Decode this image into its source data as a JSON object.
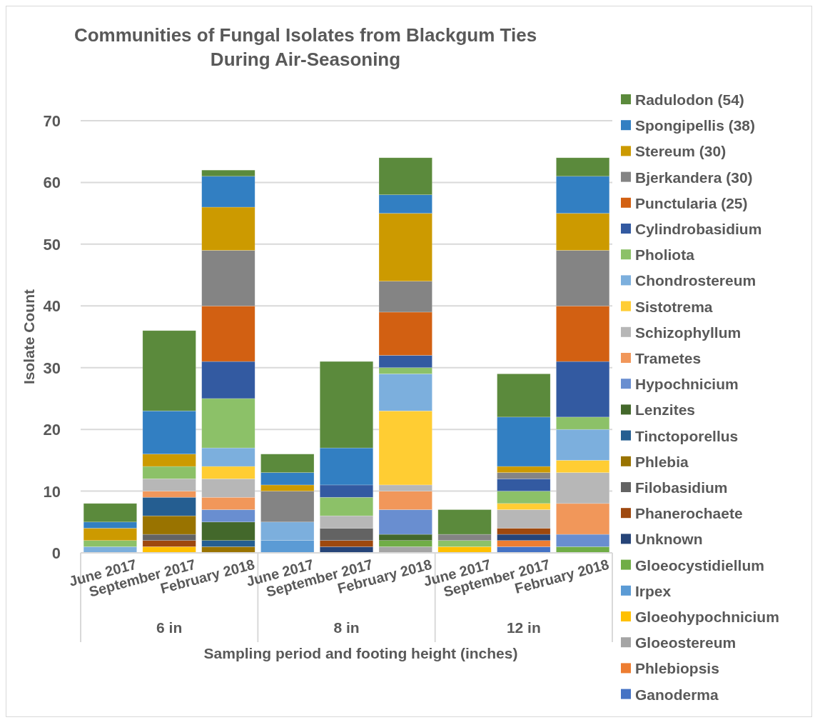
{
  "chart_data": {
    "type": "bar",
    "stacked": true,
    "title": "Communities of Fungal Isolates from Blackgum Ties During Air-Seasoning",
    "xlabel": "Sampling period and footing height (inches)",
    "ylabel": "Isolate Count",
    "categories": [
      "June 2017",
      "September 2017",
      "February 2018",
      "June 2017",
      "September 2017",
      "February 2018",
      "June 2017",
      "September 2017",
      "February 2018"
    ],
    "annotations": [
      "6 in",
      "8 in",
      "12 in"
    ],
    "ylim": [
      0,
      70
    ],
    "yticks": [
      0,
      10,
      20,
      30,
      40,
      50,
      60,
      70
    ],
    "grid": "y",
    "legend": "right",
    "series": [
      {
        "name": "Ganoderma",
        "color": "#4472c4",
        "values": [
          null,
          null,
          null,
          null,
          null,
          null,
          null,
          1,
          null
        ]
      },
      {
        "name": "Phlebiopsis",
        "color": "#ed7d31",
        "values": [
          null,
          null,
          null,
          null,
          null,
          null,
          null,
          1,
          null
        ]
      },
      {
        "name": "Gloeostereum",
        "color": "#a5a5a5",
        "values": [
          null,
          null,
          null,
          null,
          null,
          1,
          null,
          null,
          null
        ]
      },
      {
        "name": "Gloeohypochnicium",
        "color": "#ffc000",
        "values": [
          null,
          1,
          null,
          null,
          null,
          null,
          1,
          null,
          null
        ]
      },
      {
        "name": "Irpex",
        "color": "#5b9bd5",
        "values": [
          null,
          null,
          null,
          2,
          null,
          null,
          null,
          null,
          null
        ]
      },
      {
        "name": "Gloeocystidiellum",
        "color": "#70ad47",
        "values": [
          null,
          null,
          null,
          null,
          null,
          1,
          null,
          null,
          1
        ]
      },
      {
        "name": "Unknown",
        "color": "#264478",
        "values": [
          null,
          null,
          null,
          null,
          1,
          null,
          null,
          1,
          null
        ]
      },
      {
        "name": "Phanerochaete",
        "color": "#9e480e",
        "values": [
          null,
          1,
          null,
          null,
          1,
          null,
          null,
          1,
          null
        ]
      },
      {
        "name": "Filobasidium",
        "color": "#636363",
        "values": [
          null,
          1,
          null,
          null,
          2,
          null,
          null,
          null,
          null
        ]
      },
      {
        "name": "Phlebia",
        "color": "#997300",
        "values": [
          null,
          3,
          1,
          null,
          null,
          null,
          null,
          null,
          null
        ]
      },
      {
        "name": "Tinctoporellus",
        "color": "#255e91",
        "values": [
          null,
          3,
          1,
          null,
          null,
          null,
          null,
          null,
          null
        ]
      },
      {
        "name": "Lenzites",
        "color": "#43682b",
        "values": [
          null,
          null,
          3,
          null,
          null,
          1,
          null,
          null,
          null
        ]
      },
      {
        "name": "Hypochnicium",
        "color": "#698ed0",
        "values": [
          null,
          null,
          2,
          null,
          null,
          4,
          null,
          null,
          2
        ]
      },
      {
        "name": "Trametes",
        "color": "#f1975a",
        "values": [
          null,
          1,
          2,
          null,
          null,
          3,
          null,
          null,
          5
        ]
      },
      {
        "name": "Schizophyllum",
        "color": "#b7b7b7",
        "values": [
          null,
          2,
          3,
          null,
          2,
          1,
          null,
          3,
          5
        ]
      },
      {
        "name": "Sistotrema",
        "color": "#ffcd33",
        "values": [
          null,
          null,
          2,
          null,
          null,
          12,
          null,
          1,
          2
        ]
      },
      {
        "name": "Chondrostereum",
        "color": "#7cafdd",
        "values": [
          1,
          null,
          3,
          3,
          null,
          6,
          null,
          null,
          5
        ]
      },
      {
        "name": "Pholiota",
        "color": "#8cc168",
        "values": [
          1,
          2,
          8,
          null,
          3,
          1,
          1,
          2,
          2
        ]
      },
      {
        "name": "Cylindrobasidium",
        "color": "#335aa1",
        "values": [
          null,
          null,
          6,
          null,
          2,
          2,
          null,
          2,
          9
        ]
      },
      {
        "name": "Punctularia (25)",
        "color": "#d26012",
        "values": [
          null,
          null,
          9,
          null,
          null,
          7,
          null,
          null,
          9
        ]
      },
      {
        "name": "Bjerkandera (30)",
        "color": "#848484",
        "values": [
          null,
          null,
          9,
          5,
          null,
          5,
          1,
          1,
          9
        ]
      },
      {
        "name": "Stereum (30)",
        "color": "#cc9a00",
        "values": [
          2,
          2,
          7,
          1,
          null,
          11,
          null,
          1,
          6
        ]
      },
      {
        "name": "Spongipellis (38)",
        "color": "#327fc2",
        "values": [
          1,
          7,
          5,
          2,
          6,
          3,
          null,
          8,
          6
        ]
      },
      {
        "name": "Radulodon (54)",
        "color": "#5b8a3c",
        "values": [
          3,
          13,
          1,
          3,
          14,
          6,
          4,
          7,
          3
        ]
      }
    ]
  }
}
